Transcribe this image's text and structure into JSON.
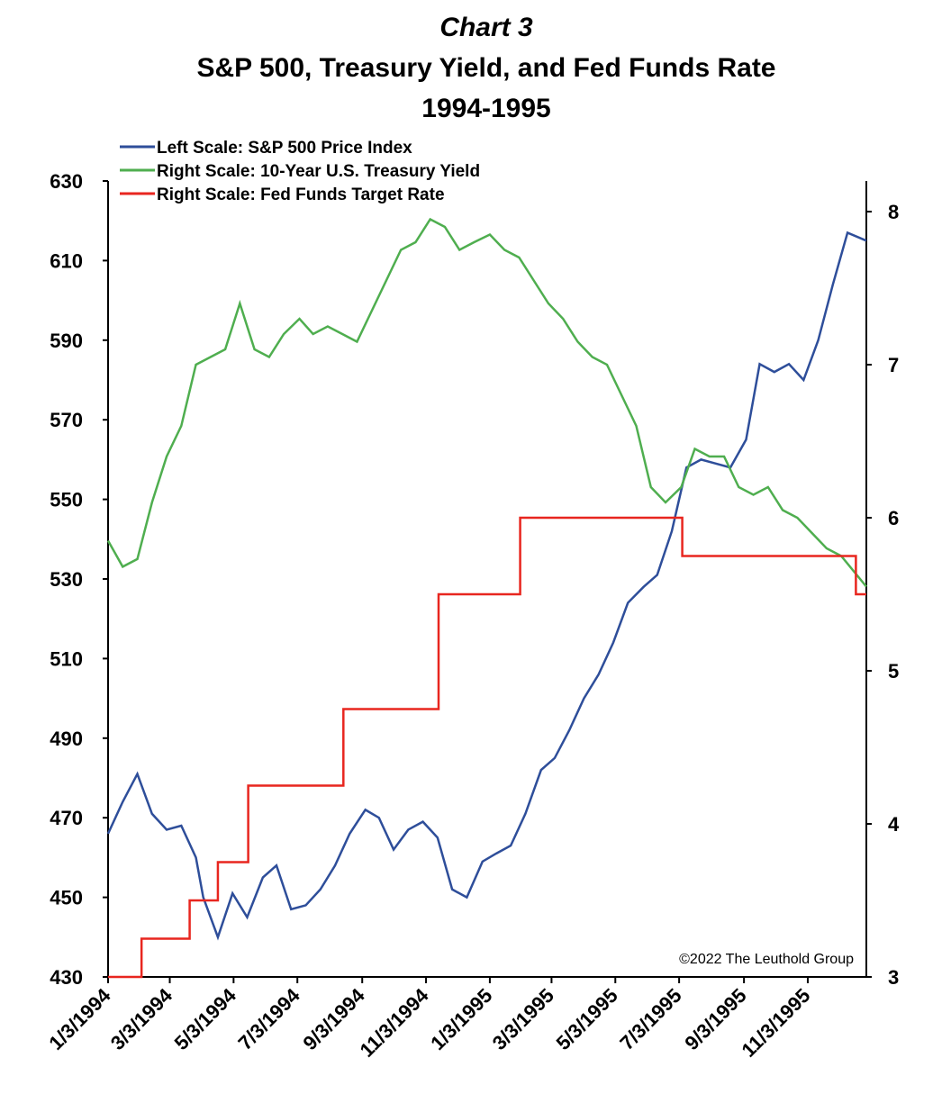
{
  "chart_data": {
    "type": "line",
    "title": "Chart 3",
    "subtitle": "S&P 500, Treasury Yield, and Fed Funds Rate",
    "subtitle2": "1994-1995",
    "annotation": "©2022 The Leuthold Group",
    "xlim": [
      "1/3/1994",
      "12/29/1995"
    ],
    "xticks": [
      "1/3/1994",
      "3/3/1994",
      "5/3/1994",
      "7/3/1994",
      "9/3/1994",
      "11/3/1994",
      "1/3/1995",
      "3/3/1995",
      "5/3/1995",
      "7/3/1995",
      "9/3/1995",
      "11/3/1995"
    ],
    "ylim": [
      430,
      630
    ],
    "yticks": [
      430,
      450,
      470,
      490,
      510,
      530,
      550,
      570,
      590,
      610,
      630
    ],
    "y2lim": [
      3,
      8.2
    ],
    "y2ticks": [
      3,
      4,
      5,
      6,
      7,
      8
    ],
    "series": [
      {
        "name": "Left Scale: S&P 500 Price Index",
        "color": "#2e4e9a",
        "axis": "y",
        "x": [
          "1/3/1994",
          "1/17/1994",
          "1/31/1994",
          "2/14/1994",
          "2/28/1994",
          "3/14/1994",
          "3/28/1994",
          "4/4/1994",
          "4/18/1994",
          "5/2/1994",
          "5/16/1994",
          "5/31/1994",
          "6/13/1994",
          "6/27/1994",
          "7/11/1994",
          "7/25/1994",
          "8/8/1994",
          "8/22/1994",
          "9/6/1994",
          "9/19/1994",
          "10/3/1994",
          "10/17/1994",
          "10/31/1994",
          "11/14/1994",
          "11/28/1994",
          "12/12/1994",
          "12/27/1994",
          "1/9/1995",
          "1/23/1995",
          "2/6/1995",
          "2/21/1995",
          "3/6/1995",
          "3/20/1995",
          "4/3/1995",
          "4/17/1995",
          "5/1/1995",
          "5/15/1995",
          "5/30/1995",
          "6/12/1995",
          "6/26/1995",
          "7/10/1995",
          "7/24/1995",
          "8/7/1995",
          "8/21/1995",
          "9/5/1995",
          "9/18/1995",
          "10/2/1995",
          "10/16/1995",
          "10/30/1995",
          "11/13/1995",
          "11/27/1995",
          "12/11/1995",
          "12/29/1995"
        ],
        "values": [
          466,
          474,
          481,
          471,
          467,
          468,
          460,
          450,
          440,
          451,
          445,
          455,
          458,
          447,
          448,
          452,
          458,
          466,
          472,
          470,
          462,
          467,
          469,
          465,
          452,
          450,
          459,
          461,
          463,
          471,
          482,
          485,
          492,
          500,
          506,
          514,
          524,
          528,
          531,
          542,
          558,
          560,
          559,
          558,
          565,
          584,
          582,
          584,
          580,
          590,
          604,
          617,
          615
        ]
      },
      {
        "name": "Right Scale: 10-Year U.S. Treasury Yield",
        "color": "#4fae4f",
        "axis": "y2",
        "x": [
          "1/3/1994",
          "1/17/1994",
          "1/31/1994",
          "2/14/1994",
          "2/28/1994",
          "3/14/1994",
          "3/28/1994",
          "4/11/1994",
          "4/25/1994",
          "5/9/1994",
          "5/23/1994",
          "6/6/1994",
          "6/20/1994",
          "7/5/1994",
          "7/18/1994",
          "8/1/1994",
          "8/15/1994",
          "8/29/1994",
          "9/12/1994",
          "9/26/1994",
          "10/10/1994",
          "10/24/1994",
          "11/7/1994",
          "11/21/1994",
          "12/5/1994",
          "12/19/1994",
          "1/3/1995",
          "1/17/1995",
          "1/31/1995",
          "2/14/1995",
          "2/28/1995",
          "3/14/1995",
          "3/28/1995",
          "4/11/1995",
          "4/25/1995",
          "5/9/1995",
          "5/23/1995",
          "6/6/1995",
          "6/20/1995",
          "7/5/1995",
          "7/18/1995",
          "8/1/1995",
          "8/15/1995",
          "8/29/1995",
          "9/12/1995",
          "9/26/1995",
          "10/10/1995",
          "10/24/1995",
          "11/7/1995",
          "11/21/1995",
          "12/5/1995",
          "12/29/1995"
        ],
        "values": [
          5.85,
          5.68,
          5.73,
          6.1,
          6.4,
          6.6,
          7.0,
          7.05,
          7.1,
          7.4,
          7.1,
          7.05,
          7.2,
          7.3,
          7.2,
          7.25,
          7.2,
          7.15,
          7.35,
          7.55,
          7.75,
          7.8,
          7.95,
          7.9,
          7.75,
          7.8,
          7.85,
          7.75,
          7.7,
          7.55,
          7.4,
          7.3,
          7.15,
          7.05,
          7.0,
          6.8,
          6.6,
          6.2,
          6.1,
          6.2,
          6.45,
          6.4,
          6.4,
          6.2,
          6.15,
          6.2,
          6.05,
          6.0,
          5.9,
          5.8,
          5.75,
          5.55
        ]
      },
      {
        "name": "Right Scale: Fed Funds Target Rate",
        "color": "#e8261f",
        "axis": "y2",
        "drawstyle": "steps-post",
        "x": [
          "1/3/1994",
          "2/4/1994",
          "3/22/1994",
          "4/18/1994",
          "5/17/1994",
          "8/16/1994",
          "11/15/1994",
          "2/1/1995",
          "7/6/1995",
          "12/19/1995",
          "12/29/1995"
        ],
        "values": [
          3.0,
          3.25,
          3.5,
          3.75,
          4.25,
          4.75,
          5.5,
          6.0,
          5.75,
          5.5,
          5.5
        ]
      }
    ]
  }
}
